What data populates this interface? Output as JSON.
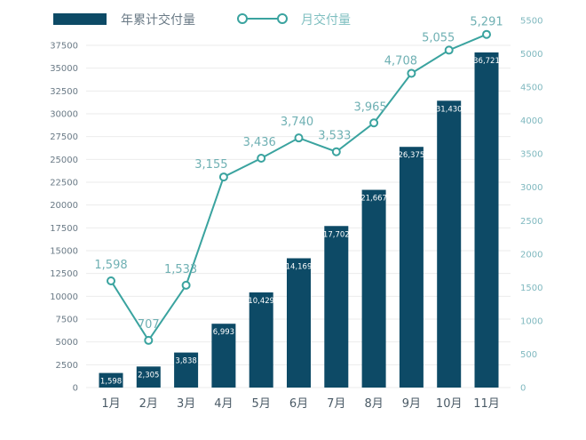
{
  "chart_data": {
    "type": "bar+line",
    "categories": [
      "1月",
      "2月",
      "3月",
      "4月",
      "5月",
      "6月",
      "7月",
      "8月",
      "9月",
      "10月",
      "11月"
    ],
    "series": [
      {
        "name": "年累计交付量",
        "type": "bar",
        "axis": "left",
        "values": [
          1598,
          2305,
          3838,
          6993,
          10429,
          14169,
          17702,
          21667,
          26375,
          31430,
          36721
        ],
        "labels": [
          "1,598",
          "2,305",
          "3,838",
          "6,993",
          "10,429",
          "14,169",
          "17,702",
          "21,667",
          "26,375",
          "31,430",
          "36,721"
        ]
      },
      {
        "name": "月交付量",
        "type": "line",
        "axis": "right",
        "values": [
          1598,
          707,
          1533,
          3155,
          3436,
          3740,
          3533,
          3965,
          4708,
          5055,
          5291
        ],
        "labels": [
          "1,598",
          "707",
          "1,533",
          "3,155",
          "3,436",
          "3,740",
          "3,533",
          "3,965",
          "4,708",
          "5,055",
          "5,291"
        ]
      }
    ],
    "left_axis": {
      "ylim": [
        0,
        37500
      ],
      "ticks": [
        "0",
        "2500",
        "5000",
        "7500",
        "10000",
        "12500",
        "15000",
        "17500",
        "20000",
        "22500",
        "25000",
        "27500",
        "30000",
        "32500",
        "35000",
        "37500"
      ]
    },
    "right_axis": {
      "ylim": [
        0,
        5500
      ],
      "ticks": [
        "0",
        "500",
        "1000",
        "1500",
        "2000",
        "2500",
        "3000",
        "3500",
        "4000",
        "4500",
        "5000",
        "5500"
      ]
    },
    "grid": true,
    "legend_position": "top-left",
    "colors": {
      "bar": "#0d4a66",
      "line": "#3aa39f",
      "grid": "#ebebeb"
    }
  }
}
